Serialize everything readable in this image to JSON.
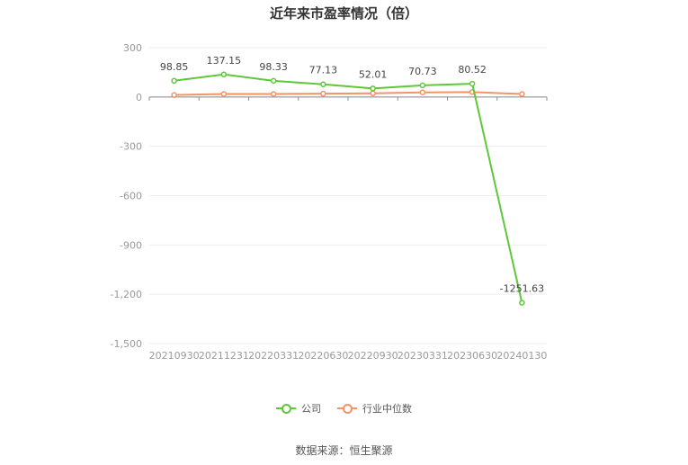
{
  "title": "近年来市盈率情况（倍）",
  "source": "数据来源：恒生聚源",
  "colors": {
    "company": "#5dc83a",
    "industry": "#f59266",
    "grid": "#eeeeee",
    "axis": "#999999"
  },
  "chart_data": {
    "type": "line",
    "title": "近年来市盈率情况（倍）",
    "categories": [
      "20210930",
      "20211231",
      "20220331",
      "20220630",
      "20220930",
      "20230331",
      "20230630",
      "20240130"
    ],
    "series": [
      {
        "name": "公司",
        "values": [
          98.85,
          137.15,
          98.33,
          77.13,
          52.01,
          70.73,
          80.52,
          -1251.63
        ],
        "labels": [
          "98.85",
          "137.15",
          "98.33",
          "77.13",
          "52.01",
          "70.73",
          "80.52",
          "-1251.63"
        ]
      },
      {
        "name": "行业中位数",
        "values": [
          12,
          18,
          18,
          20,
          22,
          28,
          30,
          18
        ]
      }
    ],
    "ylim": [
      -1500,
      300
    ],
    "yticks": [
      300,
      0,
      -300,
      -600,
      -900,
      -1200,
      -1500
    ],
    "ytick_labels": [
      "300",
      "0",
      "-300",
      "-600",
      "-900",
      "-1,200",
      "-1,500"
    ],
    "grid": true,
    "legend": "bottom"
  },
  "legend": {
    "company": "公司",
    "industry": "行业中位数"
  }
}
